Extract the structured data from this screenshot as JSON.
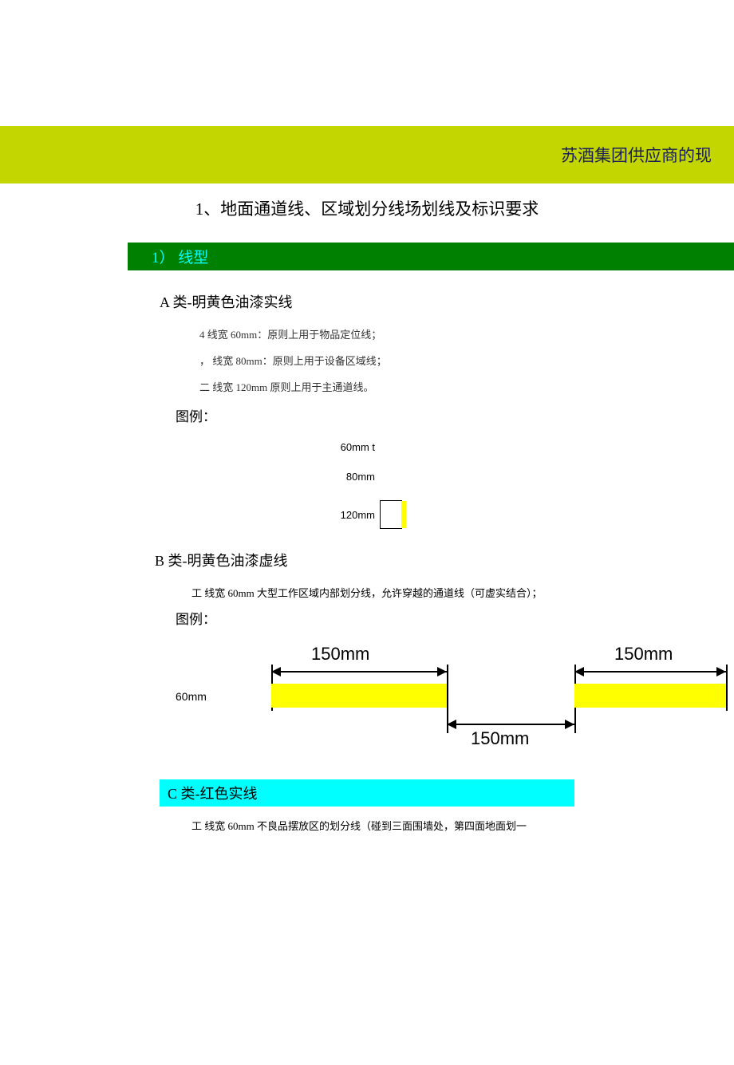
{
  "banner": {
    "title": "苏酒集团供应商的现"
  },
  "main_title": "1、地面通道线、区域划分线场划线及标识要求",
  "section1": {
    "label": "1）  线型"
  },
  "typeA": {
    "heading": "A 类-明黄色油漆实线",
    "items": [
      "4 线宽 60mm：原则上用于物品定位线；",
      "，  线宽 80mm：原则上用于设备区域线；",
      "二  线宽 120mm 原则上用于主通道线。"
    ],
    "legend": "图例：",
    "rows": {
      "r60": "60mm t",
      "r80": "80mm",
      "r120": "120mm"
    }
  },
  "typeB": {
    "heading": "B 类-明黄色油漆虚线",
    "desc": "工  线宽 60mm 大型工作区域内部划分线，允许穿越的通道线（可虚实结合）；",
    "legend": "图例：",
    "diagram": {
      "dash_color": "#ffff00",
      "dash_width_mm": 150,
      "gap_width_mm": 150,
      "line_height_mm": 60,
      "top_left_label": "150mm",
      "top_right_label": "150mm",
      "bottom_label": "150mm",
      "side_label": "60mm"
    }
  },
  "typeC": {
    "heading": "C 类-红色实线",
    "desc": "工  线宽 60mm 不良品摆放区的划分线（碰到三面围墙处，第四面地面划一"
  },
  "colors": {
    "banner_bg": "#c3d601",
    "banner_text": "#1a2056",
    "section_bg": "#008000",
    "section_text": "#00ffff",
    "c_bg": "#00ffff",
    "yellow": "#ffff00"
  }
}
